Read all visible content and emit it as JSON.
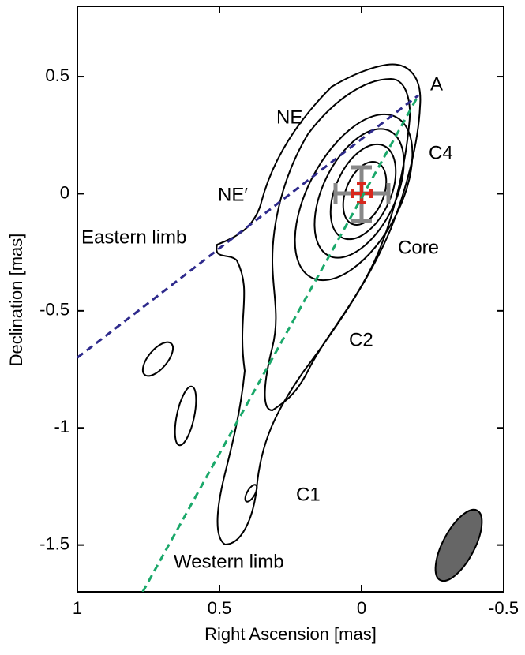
{
  "chart_data": {
    "type": "line",
    "xlabel": "Right Ascension [mas]",
    "ylabel": "Declination [mas]",
    "xlim": [
      1,
      -0.5
    ],
    "xticks": [
      1,
      0.5,
      0,
      -0.5
    ],
    "ylim": [
      -1.7,
      0.8
    ],
    "yticks": [
      0.5,
      0,
      -0.5,
      -1,
      -1.5
    ],
    "series": [
      {
        "name": "Eastern limb",
        "color": "#2e2a8c",
        "x": [
          1,
          -0.2
        ],
        "values": [
          -0.7,
          0.42
        ]
      },
      {
        "name": "Western limb",
        "color": "#1aa86a",
        "x": [
          0.77,
          -0.2
        ],
        "values": [
          -1.7,
          0.42
        ]
      }
    ],
    "annotations": [
      "A",
      "NE",
      "NE′",
      "C4",
      "Core",
      "C2",
      "C1"
    ]
  }
}
